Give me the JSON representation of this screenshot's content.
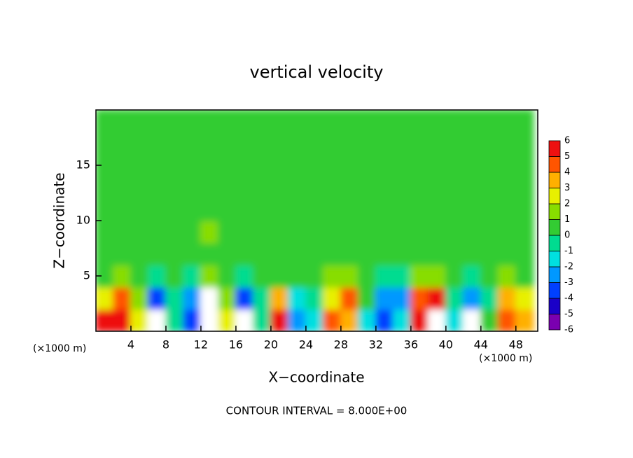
{
  "chart_data": {
    "type": "contour",
    "title": "vertical velocity",
    "x_label": "X−coordinate",
    "y_label": "Z−coordinate",
    "x_unit_left": "(×1000 m)",
    "x_unit_right": "(×1000 m)",
    "footnote": "CONTOUR INTERVAL = 8.000E+00",
    "xlim": [
      0,
      50.5
    ],
    "ylim": [
      0,
      20
    ],
    "xticks": [
      4,
      8,
      12,
      16,
      20,
      24,
      28,
      32,
      36,
      40,
      44,
      48
    ],
    "yticks": [
      5,
      10,
      15
    ],
    "x": [
      1,
      3,
      5,
      7,
      9,
      11,
      13,
      15,
      17,
      19,
      21,
      23,
      25,
      27,
      29,
      31,
      33,
      35,
      37,
      39,
      41,
      43,
      45,
      47,
      49
    ],
    "y": [
      1,
      3,
      5,
      7,
      9,
      11,
      13,
      15,
      17,
      19
    ],
    "z": [
      [
        5.5,
        5,
        2,
        -7,
        -1,
        -4,
        7,
        2,
        -7,
        -1,
        5,
        -3,
        -2,
        4,
        3,
        -2,
        -4,
        -2,
        5,
        7,
        -2,
        -6.5,
        0,
        4,
        3
      ],
      [
        2,
        4,
        1,
        -4,
        -1,
        -3,
        6,
        1,
        -4,
        -1,
        3,
        -2,
        -1,
        2,
        4,
        0,
        -3,
        -3,
        4,
        5,
        -1,
        -3,
        -1,
        3,
        2
      ],
      [
        0.4,
        1.2,
        0.3,
        -0.8,
        0.2,
        -0.6,
        1.5,
        0.4,
        -0.7,
        0.2,
        0.6,
        0.3,
        0.2,
        1.1,
        1.2,
        0.3,
        -0.6,
        -0.5,
        1.1,
        1.2,
        0.2,
        -0.7,
        0.3,
        1.1,
        0.4
      ],
      [
        0.5,
        0.6,
        0.4,
        0.5,
        0.3,
        0.6,
        0.8,
        0.5,
        0.4,
        0.6,
        0.5,
        0.4,
        0.5,
        0.6,
        0.7,
        0.5,
        0.4,
        0.5,
        0.6,
        0.5,
        0.4,
        0.5,
        0.6,
        0.5,
        0.4
      ],
      [
        0.4,
        0.5,
        0.6,
        0.5,
        0.4,
        0.7,
        1.2,
        0.6,
        0.5,
        0.4,
        0.5,
        0.6,
        0.4,
        0.5,
        0.6,
        0.5,
        0.6,
        0.4,
        0.5,
        0.6,
        0.5,
        0.4,
        0.5,
        0.6,
        0.5
      ],
      [
        0.5,
        0.4,
        0.5,
        0.6,
        0.5,
        0.6,
        0.9,
        0.5,
        0.4,
        0.5,
        0.6,
        0.4,
        0.5,
        0.4,
        0.5,
        0.6,
        0.5,
        0.4,
        0.6,
        0.5,
        0.4,
        0.5,
        0.6,
        0.4,
        0.5
      ],
      [
        0.6,
        0.5,
        0.4,
        0.5,
        0.6,
        0.5,
        0.6,
        0.5,
        0.6,
        0.4,
        0.5,
        0.5,
        0.4,
        0.6,
        0.5,
        0.4,
        0.5,
        0.6,
        0.5,
        0.4,
        0.6,
        0.5,
        0.4,
        0.5,
        0.6
      ],
      [
        0.5,
        0.6,
        0.5,
        0.4,
        0.7,
        0.6,
        0.5,
        0.4,
        0.5,
        0.6,
        0.5,
        0.4,
        0.6,
        0.5,
        0.4,
        0.5,
        0.6,
        0.5,
        0.4,
        0.5,
        0.6,
        0.5,
        0.4,
        0.6,
        0.5
      ],
      [
        0.4,
        0.5,
        0.6,
        0.5,
        0.4,
        0.5,
        0.6,
        0.5,
        0.4,
        0.5,
        0.6,
        0.5,
        0.5,
        0.4,
        0.6,
        0.5,
        0.4,
        0.6,
        0.5,
        0.4,
        0.5,
        0.6,
        0.5,
        0.4,
        0.5
      ],
      [
        0.5,
        0.4,
        0.5,
        0.6,
        0.5,
        0.4,
        0.5,
        0.6,
        0.5,
        0.4,
        0.5,
        0.6,
        0.4,
        0.5,
        0.4,
        0.6,
        0.5,
        0.4,
        0.5,
        0.6,
        0.4,
        0.5,
        0.6,
        0.5,
        0.4
      ]
    ],
    "levels": [
      -6,
      -5,
      -4,
      -3,
      -2,
      -1,
      0,
      1,
      2,
      3,
      4,
      5,
      6
    ],
    "colors": [
      "#7a00b0",
      "#1a00c8",
      "#0040ff",
      "#0098ff",
      "#00e0e0",
      "#00dc90",
      "#33cc33",
      "#88dd00",
      "#e8f000",
      "#ffb000",
      "#ff5500",
      "#ee1111"
    ],
    "over_color": "#ffffff",
    "under_color": "#ffffff"
  }
}
